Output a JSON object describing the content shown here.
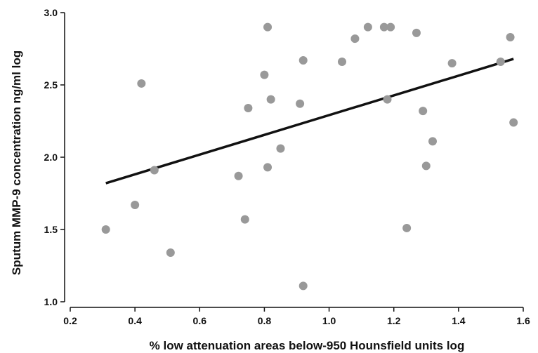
{
  "chart_data": {
    "type": "scatter",
    "title": "",
    "xlabel": "% low attenuation areas below-950  Hounsfield units log",
    "ylabel": "Sputum MMP-9  concentration ng/ml log",
    "xlim": [
      0.2,
      1.6
    ],
    "ylim": [
      1.0,
      3.0
    ],
    "xticks": [
      "0.2",
      "0.4",
      "0.6",
      "0.8",
      "1.0",
      "1.2",
      "1.4",
      "1.6"
    ],
    "yticks": [
      "1.0",
      "1.5",
      "2.0",
      "2.5",
      "3.0"
    ],
    "grid": false,
    "legend": "none",
    "point_color": "#999999",
    "line_color": "#111111",
    "points": [
      {
        "x": 0.31,
        "y": 1.5
      },
      {
        "x": 0.4,
        "y": 1.67
      },
      {
        "x": 0.42,
        "y": 2.51
      },
      {
        "x": 0.46,
        "y": 1.91
      },
      {
        "x": 0.51,
        "y": 1.34
      },
      {
        "x": 0.72,
        "y": 1.87
      },
      {
        "x": 0.74,
        "y": 1.57
      },
      {
        "x": 0.75,
        "y": 2.34
      },
      {
        "x": 0.8,
        "y": 2.57
      },
      {
        "x": 0.81,
        "y": 2.9
      },
      {
        "x": 0.81,
        "y": 1.93
      },
      {
        "x": 0.82,
        "y": 2.4
      },
      {
        "x": 0.85,
        "y": 2.06
      },
      {
        "x": 0.91,
        "y": 2.37
      },
      {
        "x": 0.92,
        "y": 2.67
      },
      {
        "x": 0.92,
        "y": 1.11
      },
      {
        "x": 1.04,
        "y": 2.66
      },
      {
        "x": 1.08,
        "y": 2.82
      },
      {
        "x": 1.12,
        "y": 2.9
      },
      {
        "x": 1.17,
        "y": 2.9
      },
      {
        "x": 1.18,
        "y": 2.4
      },
      {
        "x": 1.19,
        "y": 2.9
      },
      {
        "x": 1.24,
        "y": 1.51
      },
      {
        "x": 1.27,
        "y": 2.86
      },
      {
        "x": 1.29,
        "y": 2.32
      },
      {
        "x": 1.3,
        "y": 1.94
      },
      {
        "x": 1.32,
        "y": 2.11
      },
      {
        "x": 1.38,
        "y": 2.65
      },
      {
        "x": 1.53,
        "y": 2.66
      },
      {
        "x": 1.56,
        "y": 2.83
      },
      {
        "x": 1.57,
        "y": 2.24
      }
    ],
    "trendline": {
      "x": [
        0.31,
        1.57
      ],
      "y": [
        1.82,
        2.68
      ]
    }
  }
}
